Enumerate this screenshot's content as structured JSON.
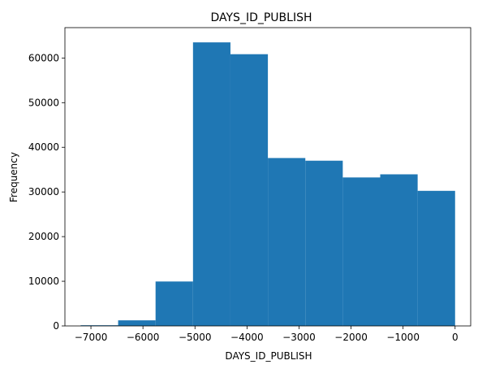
{
  "chart_data": {
    "type": "bar",
    "histogram": true,
    "title": "DAYS_ID_PUBLISH",
    "xlabel": "DAYS_ID_PUBLISH",
    "ylabel": "Frequency",
    "xlim": [
      -7500,
      300
    ],
    "ylim": [
      0,
      66800
    ],
    "grid": false,
    "color": "#1f77b4",
    "bin_edges": [
      -7197,
      -6477.3,
      -5757.6,
      -5037.9,
      -4318.2,
      -3598.5,
      -2878.8,
      -2159.1,
      -1439.4,
      -719.7,
      0
    ],
    "values": [
      150,
      1250,
      9950,
      63500,
      60850,
      37600,
      37000,
      33250,
      33950,
      30250
    ],
    "xticks": [
      -7000,
      -6000,
      -5000,
      -4000,
      -3000,
      -2000,
      -1000,
      0
    ],
    "yticks": [
      0,
      10000,
      20000,
      30000,
      40000,
      50000,
      60000
    ]
  }
}
